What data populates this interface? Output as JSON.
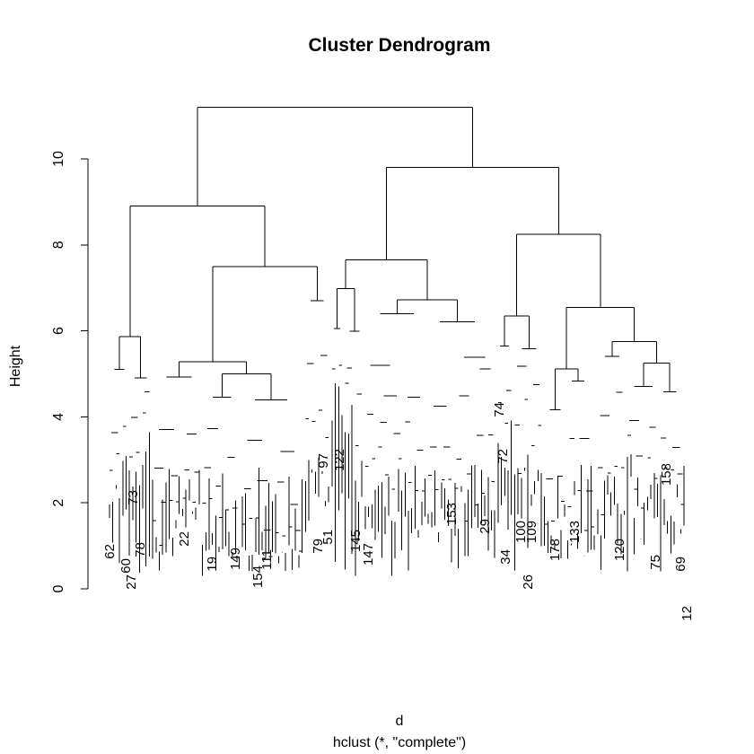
{
  "chart_data": {
    "type": "dendrogram",
    "title": "Cluster Dendrogram",
    "ylabel": "Height",
    "xlabel": "d",
    "subtitle": "hclust (*, \"complete\")",
    "ylim": [
      0,
      11.8
    ],
    "yticks": [
      0,
      2,
      4,
      6,
      8,
      10
    ],
    "grid": false,
    "visible_leaf_labels": [
      "62",
      "60",
      "73",
      "78",
      "27",
      "22",
      "19",
      "149",
      "154",
      "111",
      "97",
      "122",
      "74",
      "72",
      "158",
      "153",
      "145",
      "147",
      "29",
      "26",
      "100",
      "109",
      "178",
      "133",
      "120",
      "75",
      "69",
      "12",
      "34",
      "51",
      "79"
    ],
    "merges": [
      {
        "name": "root",
        "height": 11.2
      },
      {
        "name": "left-main",
        "height": 8.9
      },
      {
        "name": "right-main",
        "height": 9.8
      },
      {
        "name": "left-a",
        "height": 5.87
      },
      {
        "name": "left-b",
        "height": 7.5
      },
      {
        "name": "left-b1",
        "height": 5.28
      },
      {
        "name": "left-b2",
        "height": 5.0
      },
      {
        "name": "right-a",
        "height": 7.65
      },
      {
        "name": "right-b",
        "height": 8.25
      },
      {
        "name": "right-a1",
        "height": 6.72
      },
      {
        "name": "right-a2",
        "height": 6.98
      },
      {
        "name": "right-b1",
        "height": 6.55
      },
      {
        "name": "right-b2",
        "height": 6.35
      },
      {
        "name": "right-b11",
        "height": 5.75
      },
      {
        "name": "right-b12",
        "height": 5.12
      },
      {
        "name": "right-b111",
        "height": 5.25
      }
    ]
  }
}
